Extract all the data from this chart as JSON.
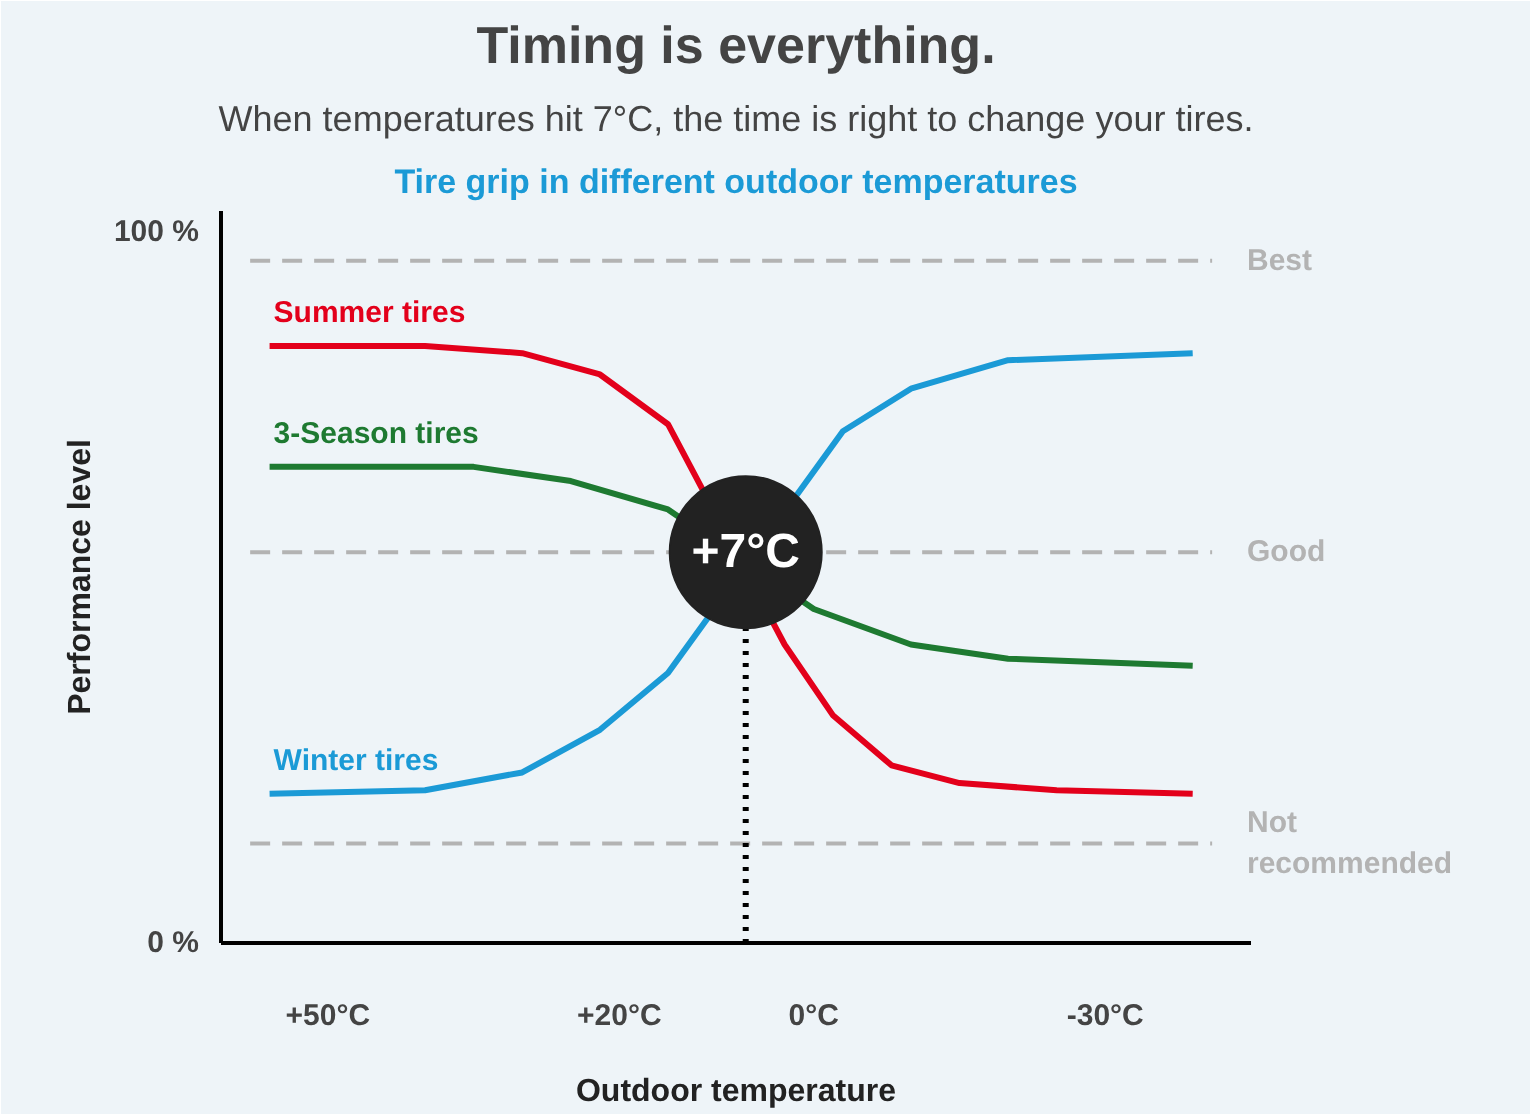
{
  "chart_data": {
    "type": "line",
    "title": "Timing is everything.",
    "subtitle": "When temperatures hit 7°C, the time is right to change your tires.",
    "xlabel": "Outdoor temperature",
    "ylabel": "Performance level",
    "annotations": [
      "Tire grip in different outdoor temperatures",
      {
        "text": "+7°C",
        "x": 7,
        "y": 55
      }
    ],
    "xlim": [
      61,
      -45
    ],
    "xticks": [
      {
        "value": 50,
        "label": "+50°C"
      },
      {
        "value": 20,
        "label": "+20°C"
      },
      {
        "value": 0,
        "label": "0°C"
      },
      {
        "value": -30,
        "label": "-30°C"
      }
    ],
    "ylim": [
      0,
      103
    ],
    "yticks": [
      {
        "value": 0,
        "label": "0 %"
      },
      {
        "value": 100,
        "label": "100 %"
      }
    ],
    "marker": "none",
    "line_style": "solid",
    "ref_lines": [
      {
        "axis": "y",
        "value": 96,
        "label": "Best",
        "color": "#b3b3b3",
        "line_style": "dashed"
      },
      {
        "axis": "y",
        "value": 55,
        "label": "Good",
        "color": "#b3b3b3",
        "line_style": "dashed"
      },
      {
        "axis": "y",
        "value": 14,
        "label": "Not recommended",
        "color": "#b3b3b3",
        "line_style": "dashed"
      },
      {
        "axis": "x",
        "value": 7,
        "color": "#000000",
        "line_style": "dotted"
      }
    ],
    "series": [
      {
        "name": "Summer tires",
        "color": "#e3001b",
        "x": [
          56,
          40,
          30,
          22,
          15,
          3,
          -2,
          -8,
          -15,
          -25,
          -39
        ],
        "values": [
          84,
          84,
          83,
          80,
          73,
          42,
          32,
          25,
          22.5,
          21.5,
          21
        ]
      },
      {
        "name": "3-Season tires",
        "color": "#1e7a31",
        "x": [
          56,
          35,
          25,
          15,
          0,
          -10,
          -20,
          -39
        ],
        "values": [
          67,
          67,
          65,
          61,
          47,
          42,
          40,
          39
        ]
      },
      {
        "name": "Winter tires",
        "color": "#1b9ad6",
        "x": [
          56,
          40,
          30,
          22,
          15,
          -3,
          -10,
          -20,
          -39
        ],
        "values": [
          21,
          21.5,
          24,
          30,
          38,
          72,
          78,
          82,
          83
        ]
      }
    ]
  }
}
